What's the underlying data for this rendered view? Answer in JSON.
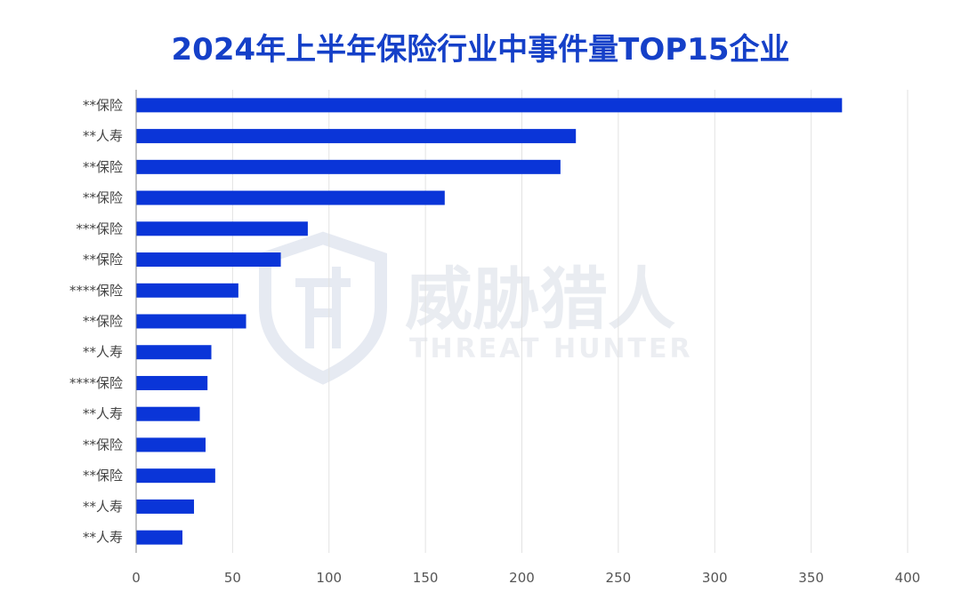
{
  "title": "2024年上半年保险行业中事件量TOP15企业",
  "watermark": {
    "cn": "威胁猎人",
    "en": "THREAT HUNTER"
  },
  "colors": {
    "bar": "#0a35d8",
    "grid": "#e2e2e2",
    "axis": "#888888",
    "title": "#1540c8",
    "watermark": "#e9ecf1"
  },
  "chart_data": {
    "type": "bar",
    "orientation": "horizontal",
    "title": "2024年上半年保险行业中事件量TOP15企业",
    "categories": [
      "**保险",
      "**人寿",
      "**保险",
      "**保险",
      "***保险",
      "**保险",
      "****保险",
      "**保险",
      "**人寿",
      "****保险",
      "**人寿",
      "**保险",
      "**保险",
      "**人寿",
      "**人寿"
    ],
    "values": [
      366,
      228,
      220,
      160,
      89,
      75,
      53,
      57,
      39,
      37,
      33,
      36,
      41,
      30,
      24
    ],
    "xlim": [
      0,
      400
    ],
    "xticks": [
      0,
      50,
      100,
      150,
      200,
      250,
      300,
      350,
      400
    ],
    "grid": "vertical",
    "xlabel": "",
    "ylabel": ""
  }
}
